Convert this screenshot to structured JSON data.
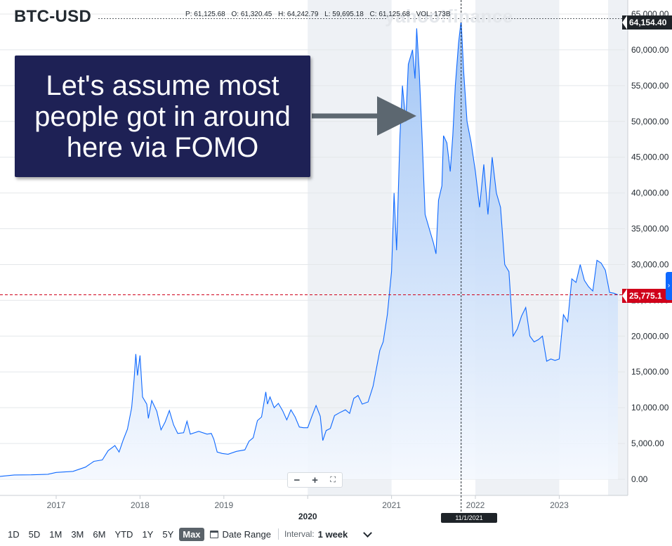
{
  "ticker": "BTC-USD",
  "watermark": "yahoo!finance",
  "ohlc": {
    "p": "P: 61,125.68",
    "o": "O: 61,320.45",
    "h": "H: 64,242.79",
    "l": "L: 59,695.18",
    "c": "C: 61,125.68",
    "vol": "VOL: 173B"
  },
  "callout": {
    "text": "Let's assume most people got in around here via FOMO"
  },
  "last_price_tag": "64,154.40",
  "current_price_tag": "25,775.1",
  "hover_date": "11/1/2021",
  "zoom": {
    "minus": "−",
    "plus": "+",
    "fullscreen": "⛶"
  },
  "ranges": [
    "1D",
    "5D",
    "1M",
    "3M",
    "6M",
    "YTD",
    "1Y",
    "5Y",
    "Max"
  ],
  "active_range": "Max",
  "date_range_label": "Date Range",
  "interval_label": "Interval:",
  "interval_value": "1 week",
  "colors": {
    "line": "#0f69ff",
    "fill_top": "#9cc2f5",
    "fill_bottom": "#f4f8fe",
    "current_price_line": "#d0021b",
    "callout_bg": "#1e2155",
    "arrow": "#5c6770"
  },
  "chart_data": {
    "type": "area",
    "title": "BTC-USD",
    "y_ticks": [
      "0.00",
      "5,000.00",
      "10,000.00",
      "15,000.00",
      "20,000.00",
      "25,000.00",
      "30,000.00",
      "35,000.00",
      "40,000.00",
      "45,000.00",
      "50,000.00",
      "55,000.00",
      "60,000.00",
      "65,000.00"
    ],
    "y_tick_values": [
      0,
      5000,
      10000,
      15000,
      20000,
      25000,
      30000,
      35000,
      40000,
      45000,
      50000,
      55000,
      60000,
      65000
    ],
    "x_ticks": [
      "2017",
      "2018",
      "2019",
      "2020",
      "2021",
      "2022",
      "2023"
    ],
    "x_tick_values": [
      2017.0,
      2018.0,
      2019.0,
      2020.0,
      2021.0,
      2022.0,
      2023.0
    ],
    "ylim": [
      0,
      65000
    ],
    "xlim": [
      2016.33,
      2023.7
    ],
    "current_price": 25775,
    "hover_x": 2021.83,
    "grid": true,
    "shaded_years": [
      [
        2020.0,
        2021.0
      ],
      [
        2022.0,
        2023.0
      ]
    ],
    "series": [
      {
        "values": [
          [
            2016.33,
            400
          ],
          [
            2016.5,
            600
          ],
          [
            2016.7,
            620
          ],
          [
            2016.9,
            700
          ],
          [
            2017.0,
            950
          ],
          [
            2017.2,
            1100
          ],
          [
            2017.35,
            1700
          ],
          [
            2017.45,
            2500
          ],
          [
            2017.55,
            2700
          ],
          [
            2017.62,
            4000
          ],
          [
            2017.7,
            4700
          ],
          [
            2017.75,
            3800
          ],
          [
            2017.8,
            5500
          ],
          [
            2017.85,
            7000
          ],
          [
            2017.9,
            10000
          ],
          [
            2017.93,
            14000
          ],
          [
            2017.95,
            17500
          ],
          [
            2017.97,
            14500
          ],
          [
            2018.0,
            17300
          ],
          [
            2018.03,
            11500
          ],
          [
            2018.08,
            10500
          ],
          [
            2018.1,
            8500
          ],
          [
            2018.14,
            11000
          ],
          [
            2018.2,
            9500
          ],
          [
            2018.25,
            6900
          ],
          [
            2018.3,
            8000
          ],
          [
            2018.35,
            9600
          ],
          [
            2018.4,
            7600
          ],
          [
            2018.45,
            6400
          ],
          [
            2018.52,
            6500
          ],
          [
            2018.56,
            8100
          ],
          [
            2018.6,
            6300
          ],
          [
            2018.7,
            6700
          ],
          [
            2018.8,
            6300
          ],
          [
            2018.85,
            6400
          ],
          [
            2018.88,
            5600
          ],
          [
            2018.92,
            3800
          ],
          [
            2018.98,
            3600
          ],
          [
            2019.05,
            3500
          ],
          [
            2019.15,
            3900
          ],
          [
            2019.25,
            4100
          ],
          [
            2019.3,
            5300
          ],
          [
            2019.35,
            5800
          ],
          [
            2019.4,
            8200
          ],
          [
            2019.45,
            8700
          ],
          [
            2019.5,
            12200
          ],
          [
            2019.52,
            10500
          ],
          [
            2019.55,
            11500
          ],
          [
            2019.6,
            10000
          ],
          [
            2019.65,
            10600
          ],
          [
            2019.7,
            9600
          ],
          [
            2019.75,
            8300
          ],
          [
            2019.8,
            9700
          ],
          [
            2019.85,
            8700
          ],
          [
            2019.9,
            7300
          ],
          [
            2019.95,
            7200
          ],
          [
            2020.0,
            7200
          ],
          [
            2020.05,
            8800
          ],
          [
            2020.1,
            10300
          ],
          [
            2020.15,
            8800
          ],
          [
            2020.18,
            5400
          ],
          [
            2020.22,
            6800
          ],
          [
            2020.27,
            7100
          ],
          [
            2020.32,
            8900
          ],
          [
            2020.38,
            9300
          ],
          [
            2020.45,
            9700
          ],
          [
            2020.5,
            9200
          ],
          [
            2020.55,
            11300
          ],
          [
            2020.6,
            11700
          ],
          [
            2020.65,
            10500
          ],
          [
            2020.72,
            10800
          ],
          [
            2020.78,
            13000
          ],
          [
            2020.82,
            15500
          ],
          [
            2020.86,
            18000
          ],
          [
            2020.9,
            19200
          ],
          [
            2020.95,
            23000
          ],
          [
            2021.0,
            29000
          ],
          [
            2021.03,
            40000
          ],
          [
            2021.06,
            32000
          ],
          [
            2021.1,
            48000
          ],
          [
            2021.13,
            55000
          ],
          [
            2021.17,
            50000
          ],
          [
            2021.2,
            58000
          ],
          [
            2021.25,
            60000
          ],
          [
            2021.28,
            56000
          ],
          [
            2021.3,
            63000
          ],
          [
            2021.33,
            57000
          ],
          [
            2021.36,
            49000
          ],
          [
            2021.4,
            37000
          ],
          [
            2021.45,
            35000
          ],
          [
            2021.5,
            33000
          ],
          [
            2021.53,
            31500
          ],
          [
            2021.56,
            39000
          ],
          [
            2021.6,
            41000
          ],
          [
            2021.62,
            48000
          ],
          [
            2021.66,
            47000
          ],
          [
            2021.7,
            43000
          ],
          [
            2021.73,
            48000
          ],
          [
            2021.76,
            55000
          ],
          [
            2021.8,
            61000
          ],
          [
            2021.83,
            64150
          ],
          [
            2021.86,
            57000
          ],
          [
            2021.9,
            50000
          ],
          [
            2021.95,
            47000
          ],
          [
            2022.0,
            43000
          ],
          [
            2022.05,
            38000
          ],
          [
            2022.1,
            44000
          ],
          [
            2022.15,
            37000
          ],
          [
            2022.2,
            45000
          ],
          [
            2022.25,
            40000
          ],
          [
            2022.3,
            38000
          ],
          [
            2022.35,
            30000
          ],
          [
            2022.4,
            29000
          ],
          [
            2022.45,
            20000
          ],
          [
            2022.5,
            21000
          ],
          [
            2022.55,
            22800
          ],
          [
            2022.6,
            24000
          ],
          [
            2022.65,
            20000
          ],
          [
            2022.7,
            19200
          ],
          [
            2022.75,
            19500
          ],
          [
            2022.8,
            20000
          ],
          [
            2022.85,
            16500
          ],
          [
            2022.9,
            16800
          ],
          [
            2022.95,
            16600
          ],
          [
            2023.0,
            16800
          ],
          [
            2023.05,
            23000
          ],
          [
            2023.1,
            22000
          ],
          [
            2023.15,
            28000
          ],
          [
            2023.2,
            27500
          ],
          [
            2023.25,
            30000
          ],
          [
            2023.3,
            27800
          ],
          [
            2023.35,
            26900
          ],
          [
            2023.4,
            26300
          ],
          [
            2023.45,
            30600
          ],
          [
            2023.5,
            30200
          ],
          [
            2023.55,
            29200
          ],
          [
            2023.6,
            26100
          ],
          [
            2023.65,
            26000
          ],
          [
            2023.7,
            25775
          ]
        ]
      }
    ]
  }
}
